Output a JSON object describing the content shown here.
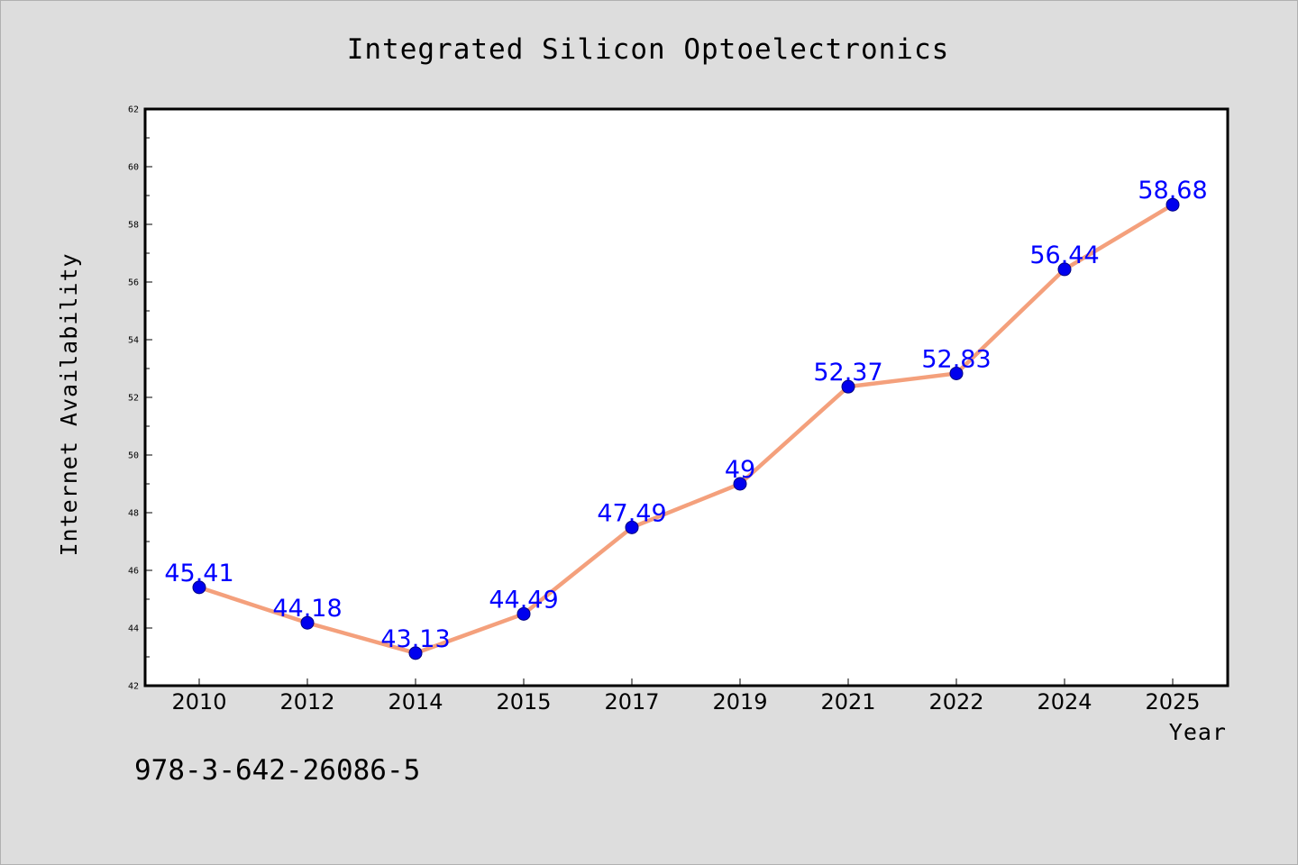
{
  "chart_data": {
    "type": "line",
    "title": "Integrated Silicon Optoelectronics",
    "xlabel": "Year",
    "ylabel": "Internet Availability",
    "categories": [
      "2010",
      "2012",
      "2014",
      "2015",
      "2017",
      "2019",
      "2021",
      "2022",
      "2024",
      "2025"
    ],
    "series": [
      {
        "values": [
          45.41,
          44.18,
          43.13,
          44.49,
          47.49,
          49,
          52.37,
          52.83,
          56.44,
          58.68
        ],
        "labels": [
          "45.41",
          "44.18",
          "43.13",
          "44.49",
          "47.49",
          "49",
          "52.37",
          "52.83",
          "56.44",
          "58.68"
        ]
      }
    ],
    "ylim": [
      42,
      62
    ],
    "yticks": [
      "42",
      "44",
      "46",
      "48",
      "50",
      "52",
      "54",
      "56",
      "58",
      "60",
      "62"
    ],
    "grid": false,
    "line_color": "#f4a07c",
    "marker_color": "#0000ee",
    "label_color": "#0000ff"
  },
  "annotation": "978-3-642-26086-5"
}
